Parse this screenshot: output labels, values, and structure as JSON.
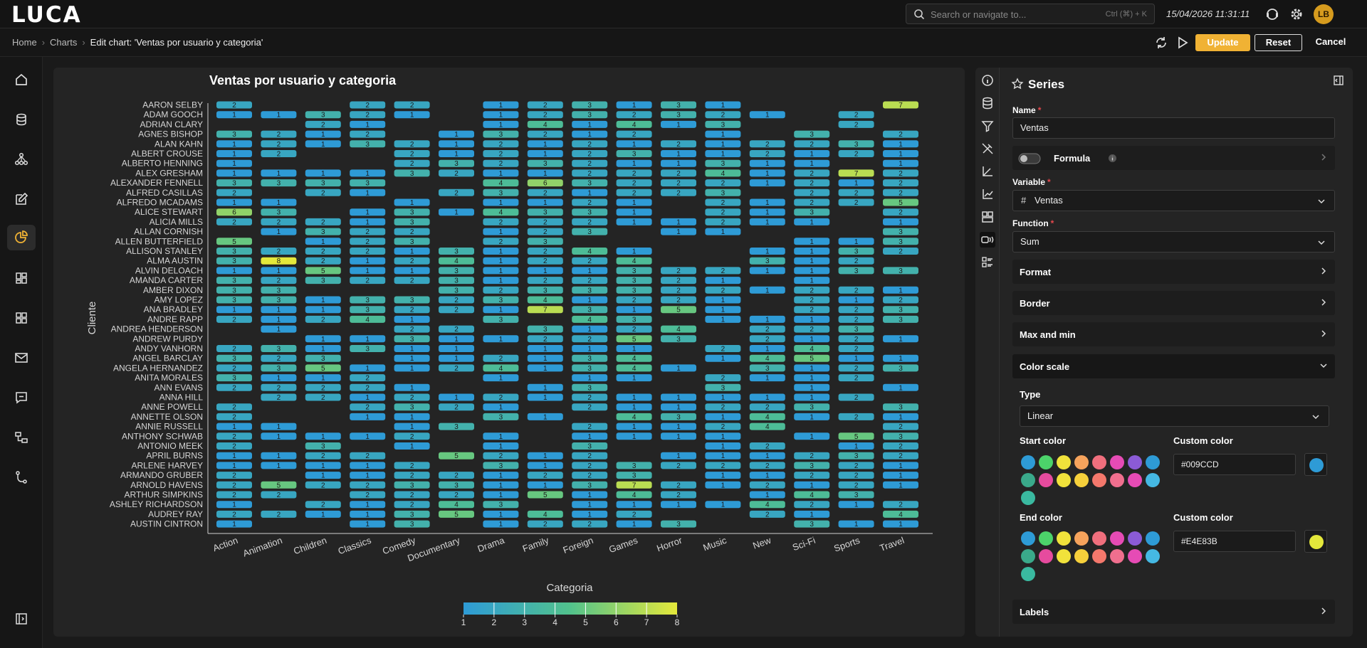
{
  "app": {
    "logo": "LUCA"
  },
  "search": {
    "placeholder": "Search or navigate to...",
    "shortcut": "Ctrl (⌘) + K"
  },
  "datetime": "15/04/2026 11:31:11",
  "user": {
    "initials": "LB"
  },
  "breadcrumb": {
    "home": "Home",
    "charts": "Charts",
    "current": "Edit chart: 'Ventas por usuario y categoria'"
  },
  "actions": {
    "update": "Update",
    "reset": "Reset",
    "cancel": "Cancel"
  },
  "panel": {
    "title": "Series",
    "name_label": "Name",
    "name_value": "Ventas",
    "formula_label": "Formula",
    "variable_label": "Variable",
    "variable_value": "Ventas",
    "function_label": "Function",
    "function_value": "Sum",
    "sections": {
      "format": "Format",
      "border": "Border",
      "maxmin": "Max and min",
      "colorscale": "Color scale",
      "labels": "Labels"
    },
    "type_label": "Type",
    "type_value": "Linear",
    "start_color_label": "Start color",
    "end_color_label": "End color",
    "custom_color_label": "Custom color",
    "start_custom": "#009CCD",
    "end_custom": "#E4E83B",
    "start_custom_swatch": "#2e9bd6",
    "end_custom_swatch": "#e4e83b",
    "palette": [
      "#2e9bd6",
      "#4cd36a",
      "#f1e23b",
      "#f6a35c",
      "#f06f7d",
      "#e64bb5",
      "#8b5bd6",
      "#2e9bd6",
      "#3aa98a",
      "#e64b9e",
      "#f1e23b",
      "#f6d03b",
      "#f4786c",
      "#f06f8e",
      "#e64bb5",
      "#45b8e3",
      "#3ab9a0"
    ]
  },
  "chart_data": {
    "type": "heatmap",
    "title": "Ventas por usuario y categoria",
    "xlabel": "Categoria",
    "ylabel": "Cliente",
    "colorscale": {
      "min": 1,
      "max": 8,
      "start": "#2e9bd6",
      "end": "#e4e83b",
      "ticks": [
        "1",
        "2",
        "3",
        "4",
        "5",
        "6",
        "7",
        "8"
      ]
    },
    "x": [
      "Action",
      "Animation",
      "Children",
      "Classics",
      "Comedy",
      "Documentary",
      "Drama",
      "Family",
      "Foreign",
      "Games",
      "Horror",
      "Music",
      "New",
      "Sci-Fi",
      "Sports",
      "Travel"
    ],
    "y": [
      "AARON SELBY",
      "ADAM GOOCH",
      "ADRIAN CLARY",
      "AGNES BISHOP",
      "ALAN KAHN",
      "ALBERT CROUSE",
      "ALBERTO HENNING",
      "ALEX GRESHAM",
      "ALEXANDER FENNELL",
      "ALFRED CASILLAS",
      "ALFREDO MCADAMS",
      "ALICE STEWART",
      "ALICIA MILLS",
      "ALLAN CORNISH",
      "ALLEN BUTTERFIELD",
      "ALLISON STANLEY",
      "ALMA AUSTIN",
      "ALVIN DELOACH",
      "AMANDA CARTER",
      "AMBER DIXON",
      "AMY LOPEZ",
      "ANA BRADLEY",
      "ANDRE RAPP",
      "ANDREA HENDERSON",
      "ANDREW PURDY",
      "ANDY VANHORN",
      "ANGEL BARCLAY",
      "ANGELA HERNANDEZ",
      "ANITA MORALES",
      "ANN EVANS",
      "ANNA HILL",
      "ANNE POWELL",
      "ANNETTE OLSON",
      "ANNIE RUSSELL",
      "ANTHONY SCHWAB",
      "ANTONIO MEEK",
      "APRIL BURNS",
      "ARLENE HARVEY",
      "ARMANDO GRUBER",
      "ARNOLD HAVENS",
      "ARTHUR SIMPKINS",
      "ASHLEY RICHARDSON",
      "AUDREY RAY",
      "AUSTIN CINTRON"
    ],
    "values": [
      [
        2,
        null,
        null,
        2,
        2,
        null,
        1,
        2,
        3,
        1,
        3,
        1,
        null,
        null,
        null,
        7
      ],
      [
        1,
        1,
        3,
        2,
        1,
        null,
        1,
        2,
        3,
        2,
        3,
        2,
        1,
        null,
        2,
        null
      ],
      [
        null,
        null,
        2,
        1,
        null,
        null,
        1,
        4,
        1,
        4,
        1,
        3,
        null,
        null,
        2,
        null
      ],
      [
        3,
        2,
        1,
        2,
        null,
        1,
        3,
        2,
        1,
        2,
        null,
        1,
        null,
        3,
        null,
        2
      ],
      [
        1,
        2,
        1,
        3,
        2,
        1,
        2,
        1,
        2,
        1,
        2,
        1,
        2,
        2,
        3,
        1
      ],
      [
        1,
        2,
        null,
        null,
        2,
        1,
        2,
        1,
        2,
        3,
        1,
        1,
        2,
        1,
        2,
        1
      ],
      [
        1,
        null,
        null,
        null,
        2,
        3,
        2,
        3,
        2,
        1,
        1,
        3,
        1,
        1,
        null,
        1
      ],
      [
        1,
        1,
        1,
        1,
        3,
        2,
        1,
        1,
        2,
        2,
        2,
        4,
        1,
        2,
        7,
        2
      ],
      [
        3,
        3,
        3,
        3,
        null,
        null,
        4,
        6,
        3,
        2,
        2,
        2,
        1,
        2,
        1,
        2
      ],
      [
        2,
        null,
        2,
        1,
        null,
        2,
        3,
        2,
        1,
        2,
        2,
        3,
        null,
        2,
        2,
        2
      ],
      [
        1,
        1,
        null,
        null,
        1,
        null,
        1,
        1,
        2,
        1,
        null,
        2,
        1,
        2,
        2,
        5
      ],
      [
        6,
        3,
        null,
        1,
        3,
        1,
        4,
        3,
        3,
        1,
        null,
        2,
        1,
        3,
        null,
        2
      ],
      [
        2,
        2,
        2,
        1,
        3,
        null,
        2,
        2,
        2,
        1,
        1,
        2,
        1,
        1,
        null,
        1
      ],
      [
        null,
        1,
        3,
        2,
        2,
        null,
        1,
        2,
        3,
        null,
        1,
        1,
        null,
        null,
        null,
        3
      ],
      [
        5,
        null,
        1,
        2,
        3,
        null,
        2,
        3,
        null,
        null,
        null,
        null,
        null,
        1,
        1,
        3
      ],
      [
        3,
        2,
        2,
        2,
        1,
        3,
        1,
        2,
        4,
        1,
        null,
        null,
        1,
        1,
        3,
        2
      ],
      [
        3,
        8,
        2,
        1,
        2,
        4,
        1,
        2,
        2,
        4,
        null,
        null,
        3,
        1,
        2,
        null
      ],
      [
        1,
        1,
        5,
        1,
        1,
        3,
        1,
        1,
        1,
        3,
        2,
        2,
        1,
        1,
        3,
        3
      ],
      [
        3,
        2,
        3,
        2,
        2,
        3,
        1,
        2,
        2,
        3,
        2,
        1,
        null,
        1,
        null,
        null
      ],
      [
        3,
        3,
        null,
        null,
        null,
        3,
        2,
        3,
        3,
        3,
        2,
        2,
        1,
        2,
        2,
        1
      ],
      [
        3,
        3,
        1,
        3,
        3,
        2,
        3,
        4,
        1,
        2,
        2,
        1,
        null,
        2,
        1,
        2
      ],
      [
        1,
        1,
        1,
        3,
        2,
        2,
        1,
        7,
        3,
        1,
        5,
        1,
        null,
        2,
        2,
        3
      ],
      [
        2,
        1,
        2,
        4,
        1,
        null,
        3,
        null,
        4,
        3,
        null,
        1,
        1,
        1,
        2,
        3
      ],
      [
        null,
        1,
        null,
        null,
        2,
        2,
        null,
        3,
        1,
        2,
        4,
        null,
        2,
        2,
        3,
        null
      ],
      [
        null,
        null,
        1,
        1,
        3,
        1,
        1,
        2,
        2,
        5,
        3,
        null,
        2,
        1,
        2,
        1
      ],
      [
        2,
        3,
        1,
        3,
        1,
        1,
        null,
        1,
        1,
        1,
        null,
        2,
        1,
        4,
        2,
        null
      ],
      [
        3,
        2,
        3,
        null,
        1,
        1,
        2,
        1,
        3,
        4,
        null,
        1,
        4,
        5,
        1,
        1
      ],
      [
        2,
        3,
        5,
        1,
        1,
        2,
        4,
        1,
        3,
        4,
        1,
        null,
        3,
        1,
        2,
        3
      ],
      [
        3,
        1,
        1,
        2,
        null,
        null,
        1,
        null,
        1,
        1,
        null,
        2,
        1,
        1,
        2,
        null
      ],
      [
        2,
        2,
        2,
        2,
        1,
        null,
        null,
        1,
        3,
        null,
        null,
        3,
        null,
        1,
        null,
        1
      ],
      [
        null,
        2,
        2,
        1,
        2,
        1,
        2,
        1,
        2,
        1,
        1,
        1,
        1,
        1,
        2,
        null
      ],
      [
        2,
        null,
        null,
        2,
        3,
        2,
        1,
        null,
        2,
        1,
        1,
        2,
        2,
        3,
        null,
        3
      ],
      [
        2,
        null,
        null,
        1,
        1,
        null,
        3,
        1,
        null,
        4,
        3,
        1,
        4,
        1,
        2,
        1
      ],
      [
        1,
        1,
        null,
        null,
        1,
        3,
        null,
        null,
        2,
        1,
        1,
        2,
        4,
        null,
        null,
        2
      ],
      [
        2,
        1,
        1,
        1,
        2,
        null,
        1,
        null,
        1,
        1,
        1,
        1,
        null,
        1,
        5,
        3
      ],
      [
        2,
        null,
        3,
        null,
        1,
        null,
        1,
        null,
        3,
        null,
        null,
        1,
        2,
        null,
        1,
        2
      ],
      [
        1,
        1,
        2,
        2,
        null,
        5,
        2,
        1,
        2,
        null,
        1,
        1,
        1,
        2,
        3,
        2
      ],
      [
        1,
        1,
        1,
        1,
        2,
        null,
        3,
        1,
        2,
        3,
        2,
        2,
        2,
        3,
        2,
        1
      ],
      [
        2,
        null,
        1,
        1,
        2,
        2,
        1,
        2,
        2,
        3,
        null,
        1,
        1,
        2,
        2,
        1
      ],
      [
        2,
        5,
        2,
        2,
        3,
        3,
        1,
        1,
        3,
        7,
        2,
        1,
        2,
        1,
        2,
        1
      ],
      [
        2,
        2,
        null,
        2,
        2,
        2,
        1,
        5,
        1,
        4,
        2,
        null,
        1,
        4,
        3,
        null
      ],
      [
        1,
        null,
        2,
        1,
        2,
        4,
        3,
        null,
        1,
        1,
        1,
        1,
        4,
        2,
        1,
        2
      ],
      [
        2,
        2,
        1,
        1,
        3,
        5,
        1,
        4,
        1,
        2,
        null,
        null,
        2,
        1,
        null,
        4
      ],
      [
        1,
        null,
        null,
        1,
        3,
        null,
        1,
        2,
        2,
        1,
        3,
        null,
        null,
        3,
        1,
        1
      ]
    ]
  }
}
